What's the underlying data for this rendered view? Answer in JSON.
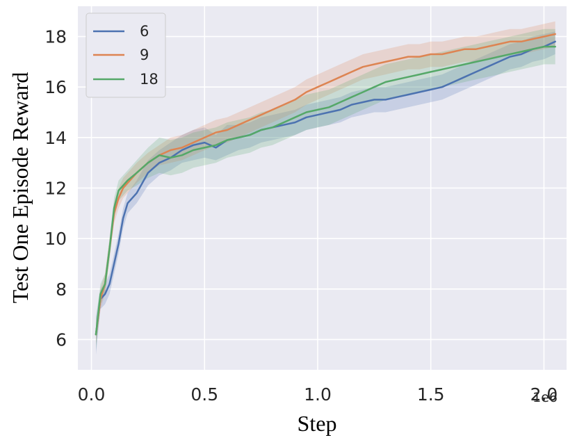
{
  "chart_data": {
    "type": "line",
    "title": "",
    "xlabel": "Step",
    "ylabel": "Test One Episode Reward",
    "x_offset_label": "1e6",
    "xlim": [
      -0.06,
      2.1
    ],
    "ylim": [
      4.8,
      19.2
    ],
    "x_ticks": [
      0.0,
      0.5,
      1.0,
      1.5,
      2.0
    ],
    "x_tick_labels": [
      "0.0",
      "0.5",
      "1.0",
      "1.5",
      "2.0"
    ],
    "y_ticks": [
      6,
      8,
      10,
      12,
      14,
      16,
      18
    ],
    "y_tick_labels": [
      "6",
      "8",
      "10",
      "12",
      "14",
      "16",
      "18"
    ],
    "grid": true,
    "legend_position": "top-left",
    "colors": {
      "background": "#eaeaf2",
      "grid": "#ffffff",
      "6": "#4c72b0",
      "9": "#dd8452",
      "18": "#55a868"
    },
    "series": [
      {
        "name": "6",
        "color": "#4c72b0",
        "x": [
          0.02,
          0.04,
          0.06,
          0.08,
          0.1,
          0.12,
          0.14,
          0.16,
          0.2,
          0.25,
          0.3,
          0.35,
          0.4,
          0.45,
          0.5,
          0.55,
          0.6,
          0.65,
          0.7,
          0.75,
          0.8,
          0.85,
          0.9,
          0.95,
          1.0,
          1.05,
          1.1,
          1.15,
          1.2,
          1.25,
          1.3,
          1.35,
          1.4,
          1.45,
          1.5,
          1.55,
          1.6,
          1.65,
          1.7,
          1.75,
          1.8,
          1.85,
          1.9,
          1.95,
          2.0,
          2.05
        ],
        "values": [
          6.2,
          7.6,
          7.8,
          8.2,
          9.0,
          9.8,
          10.8,
          11.4,
          11.8,
          12.6,
          13.0,
          13.2,
          13.5,
          13.7,
          13.8,
          13.6,
          13.9,
          14.0,
          14.1,
          14.3,
          14.4,
          14.5,
          14.6,
          14.8,
          14.9,
          15.0,
          15.1,
          15.3,
          15.4,
          15.5,
          15.5,
          15.6,
          15.7,
          15.8,
          15.9,
          16.0,
          16.2,
          16.4,
          16.6,
          16.8,
          17.0,
          17.2,
          17.3,
          17.5,
          17.6,
          17.8
        ],
        "band_lower": [
          5.4,
          7.2,
          7.4,
          7.8,
          8.6,
          9.4,
          10.4,
          11.0,
          11.4,
          12.1,
          12.5,
          12.7,
          13.0,
          13.1,
          13.2,
          13.1,
          13.3,
          13.5,
          13.6,
          13.8,
          13.9,
          14.0,
          14.1,
          14.3,
          14.4,
          14.5,
          14.6,
          14.8,
          14.9,
          15.0,
          15.0,
          15.1,
          15.2,
          15.3,
          15.4,
          15.5,
          15.7,
          15.9,
          16.1,
          16.3,
          16.5,
          16.7,
          16.8,
          17.0,
          17.1,
          17.3
        ],
        "band_upper": [
          6.9,
          8.0,
          8.2,
          8.6,
          9.4,
          10.2,
          11.2,
          11.8,
          12.3,
          13.1,
          13.5,
          13.8,
          14.1,
          14.3,
          14.4,
          14.1,
          14.5,
          14.5,
          14.6,
          14.8,
          14.9,
          15.0,
          15.1,
          15.3,
          15.4,
          15.5,
          15.6,
          15.8,
          15.9,
          16.0,
          16.0,
          16.1,
          16.2,
          16.3,
          16.4,
          16.5,
          16.7,
          16.9,
          17.1,
          17.3,
          17.5,
          17.7,
          17.8,
          18.0,
          18.1,
          18.2
        ]
      },
      {
        "name": "9",
        "color": "#dd8452",
        "x": [
          0.02,
          0.04,
          0.06,
          0.08,
          0.1,
          0.12,
          0.14,
          0.16,
          0.2,
          0.25,
          0.3,
          0.35,
          0.4,
          0.45,
          0.5,
          0.55,
          0.6,
          0.65,
          0.7,
          0.75,
          0.8,
          0.85,
          0.9,
          0.95,
          1.0,
          1.05,
          1.1,
          1.15,
          1.2,
          1.25,
          1.3,
          1.35,
          1.4,
          1.45,
          1.5,
          1.55,
          1.6,
          1.65,
          1.7,
          1.75,
          1.8,
          1.85,
          1.9,
          1.95,
          2.0,
          2.05
        ],
        "values": [
          6.2,
          7.6,
          8.2,
          9.6,
          11.0,
          11.6,
          12.0,
          12.2,
          12.6,
          13.0,
          13.3,
          13.5,
          13.6,
          13.8,
          14.0,
          14.2,
          14.3,
          14.5,
          14.7,
          14.9,
          15.1,
          15.3,
          15.5,
          15.8,
          16.0,
          16.2,
          16.4,
          16.6,
          16.8,
          16.9,
          17.0,
          17.1,
          17.2,
          17.2,
          17.3,
          17.3,
          17.4,
          17.5,
          17.5,
          17.6,
          17.7,
          17.8,
          17.8,
          17.9,
          18.0,
          18.1
        ],
        "band_lower": [
          5.8,
          7.2,
          7.8,
          9.2,
          10.6,
          11.2,
          11.6,
          11.8,
          12.2,
          12.6,
          12.9,
          13.0,
          13.1,
          13.3,
          13.5,
          13.7,
          13.8,
          14.0,
          14.2,
          14.4,
          14.6,
          14.8,
          15.0,
          15.3,
          15.5,
          15.7,
          15.9,
          16.1,
          16.3,
          16.4,
          16.5,
          16.6,
          16.7,
          16.7,
          16.8,
          16.8,
          16.9,
          17.0,
          17.0,
          17.1,
          17.2,
          17.3,
          17.3,
          17.4,
          17.5,
          17.6
        ],
        "band_upper": [
          6.6,
          8.0,
          8.6,
          10.0,
          11.4,
          12.0,
          12.4,
          12.6,
          13.0,
          13.4,
          13.7,
          14.0,
          14.1,
          14.3,
          14.5,
          14.7,
          14.8,
          15.0,
          15.2,
          15.4,
          15.6,
          15.8,
          16.0,
          16.3,
          16.5,
          16.7,
          16.9,
          17.1,
          17.3,
          17.4,
          17.5,
          17.6,
          17.7,
          17.7,
          17.8,
          17.8,
          17.9,
          18.0,
          18.0,
          18.1,
          18.2,
          18.3,
          18.3,
          18.4,
          18.5,
          18.6
        ]
      },
      {
        "name": "18",
        "color": "#55a868",
        "x": [
          0.02,
          0.04,
          0.06,
          0.08,
          0.1,
          0.12,
          0.14,
          0.16,
          0.2,
          0.25,
          0.3,
          0.35,
          0.4,
          0.45,
          0.5,
          0.55,
          0.6,
          0.65,
          0.7,
          0.75,
          0.8,
          0.85,
          0.9,
          0.95,
          1.0,
          1.05,
          1.1,
          1.15,
          1.2,
          1.25,
          1.3,
          1.35,
          1.4,
          1.45,
          1.5,
          1.55,
          1.6,
          1.65,
          1.7,
          1.75,
          1.8,
          1.85,
          1.9,
          1.95,
          2.0,
          2.05
        ],
        "values": [
          6.2,
          7.8,
          8.2,
          9.6,
          11.2,
          11.9,
          12.1,
          12.3,
          12.6,
          13.0,
          13.3,
          13.2,
          13.3,
          13.5,
          13.6,
          13.7,
          13.9,
          14.0,
          14.1,
          14.3,
          14.4,
          14.6,
          14.8,
          15.0,
          15.1,
          15.2,
          15.4,
          15.6,
          15.8,
          16.0,
          16.2,
          16.3,
          16.4,
          16.5,
          16.6,
          16.7,
          16.8,
          16.9,
          17.0,
          17.1,
          17.2,
          17.3,
          17.4,
          17.5,
          17.6,
          17.6
        ],
        "band_lower": [
          5.6,
          7.4,
          7.8,
          9.2,
          10.8,
          11.5,
          11.7,
          11.9,
          12.1,
          12.4,
          12.6,
          12.5,
          12.6,
          12.8,
          12.9,
          13.0,
          13.2,
          13.3,
          13.4,
          13.6,
          13.7,
          13.9,
          14.1,
          14.3,
          14.4,
          14.5,
          14.7,
          14.9,
          15.1,
          15.3,
          15.5,
          15.6,
          15.7,
          15.8,
          15.9,
          16.0,
          16.1,
          16.2,
          16.3,
          16.4,
          16.5,
          16.6,
          16.7,
          16.8,
          16.9,
          16.9
        ],
        "band_upper": [
          6.8,
          8.2,
          8.6,
          10.0,
          11.6,
          12.3,
          12.5,
          12.7,
          13.1,
          13.6,
          14.0,
          13.9,
          14.0,
          14.2,
          14.3,
          14.4,
          14.6,
          14.7,
          14.8,
          15.0,
          15.1,
          15.3,
          15.5,
          15.7,
          15.8,
          15.9,
          16.1,
          16.3,
          16.5,
          16.7,
          16.9,
          17.0,
          17.1,
          17.2,
          17.3,
          17.4,
          17.5,
          17.6,
          17.7,
          17.8,
          17.9,
          18.0,
          18.1,
          18.2,
          18.3,
          18.3
        ]
      }
    ]
  }
}
